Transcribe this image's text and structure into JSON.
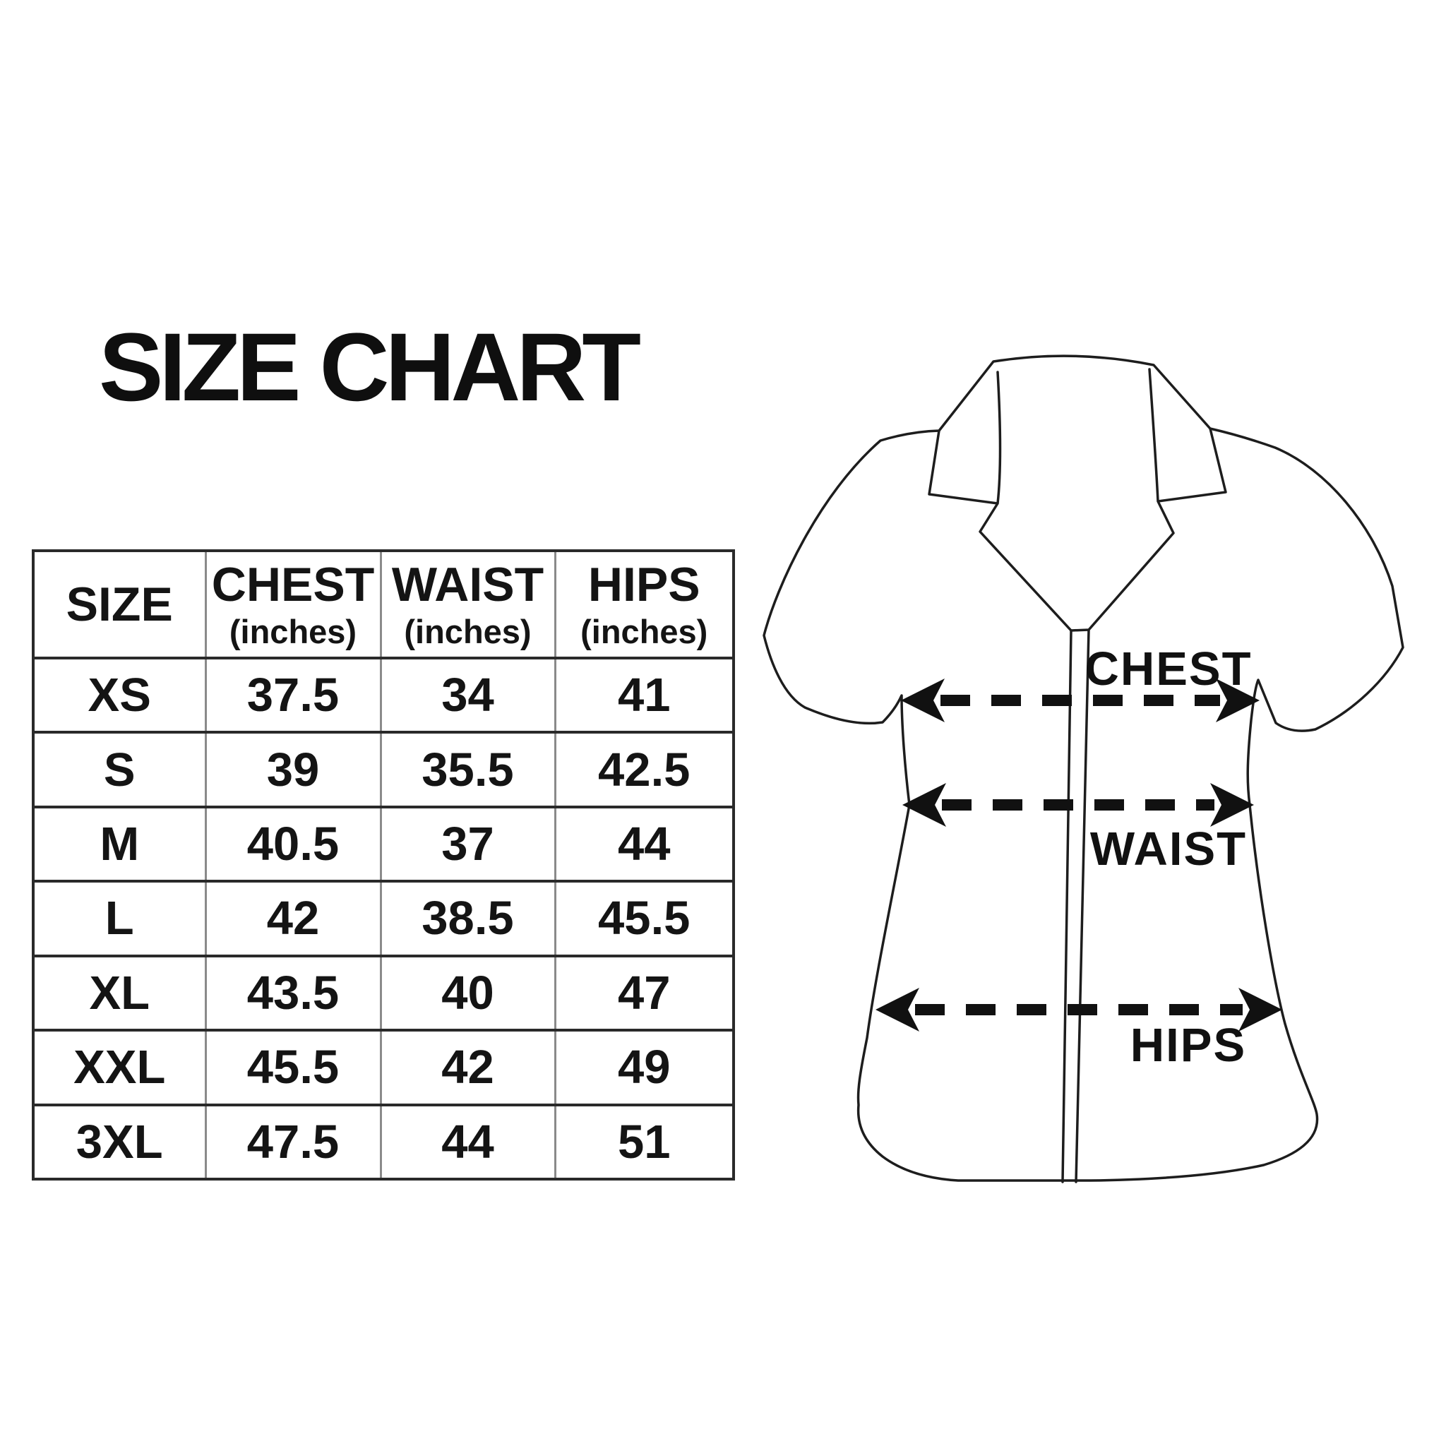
{
  "title": "SIZE CHART",
  "table": {
    "columns": [
      {
        "label": "SIZE",
        "sub": ""
      },
      {
        "label": "CHEST",
        "sub": "(inches)"
      },
      {
        "label": "WAIST",
        "sub": "(inches)"
      },
      {
        "label": "HIPS",
        "sub": "(inches)"
      }
    ],
    "rows": [
      {
        "size": "XS",
        "chest": "37.5",
        "waist": "34",
        "hips": "41"
      },
      {
        "size": "S",
        "chest": "39",
        "waist": "35.5",
        "hips": "42.5"
      },
      {
        "size": "M",
        "chest": "40.5",
        "waist": "37",
        "hips": "44"
      },
      {
        "size": "L",
        "chest": "42",
        "waist": "38.5",
        "hips": "45.5"
      },
      {
        "size": "XL",
        "chest": "43.5",
        "waist": "40",
        "hips": "47"
      },
      {
        "size": "XXL",
        "chest": "45.5",
        "waist": "42",
        "hips": "49"
      },
      {
        "size": "3XL",
        "chest": "47.5",
        "waist": "44",
        "hips": "51"
      }
    ]
  },
  "diagram": {
    "chest_label": "CHEST",
    "waist_label": "WAIST",
    "hips_label": "HIPS"
  },
  "colors": {
    "background": "#ffffff",
    "text": "#141414",
    "line_art": "#1d1d1d",
    "table_horizontal_border": "#2a2a2a",
    "table_vertical_border": "#8a8a8a"
  },
  "chart_data": {
    "type": "table",
    "title": "SIZE CHART",
    "columns": [
      "SIZE",
      "CHEST (inches)",
      "WAIST (inches)",
      "HIPS (inches)"
    ],
    "rows": [
      [
        "XS",
        37.5,
        34,
        41
      ],
      [
        "S",
        39,
        35.5,
        42.5
      ],
      [
        "M",
        40.5,
        37,
        44
      ],
      [
        "L",
        42,
        38.5,
        45.5
      ],
      [
        "XL",
        43.5,
        40,
        47
      ],
      [
        "XXL",
        45.5,
        42,
        49
      ],
      [
        "3XL",
        47.5,
        44,
        51
      ]
    ]
  }
}
